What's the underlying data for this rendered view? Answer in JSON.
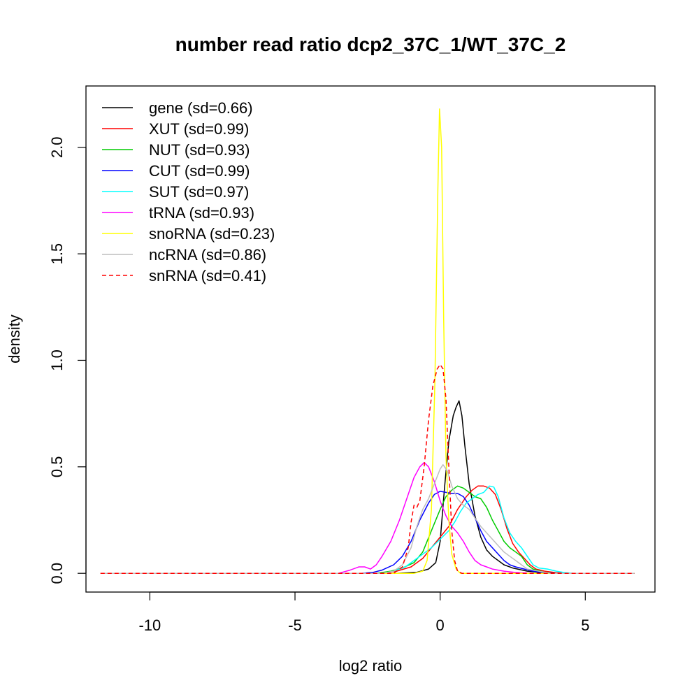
{
  "chart_data": {
    "type": "line",
    "title": "number read ratio dcp2_37C_1/WT_37C_2",
    "xlabel": "log2 ratio",
    "ylabel": "density",
    "xlim": [
      -12.2,
      7.4
    ],
    "ylim": [
      -0.088,
      2.288
    ],
    "x_ticks": [
      -10,
      -5,
      0,
      5
    ],
    "x_tick_labels": [
      "-10",
      "-5",
      "0",
      "5"
    ],
    "y_ticks": [
      0.0,
      0.5,
      1.0,
      1.5,
      2.0
    ],
    "y_tick_labels": [
      "0.0",
      "0.5",
      "1.0",
      "1.5",
      "2.0"
    ],
    "grid": false,
    "legend_position": "top-left",
    "series": [
      {
        "name": "gene (sd=0.66)",
        "color": "#000000",
        "dashed": false,
        "points": [
          [
            -11.7,
            0
          ],
          [
            -1.5,
            0
          ],
          [
            -0.8,
            0.005
          ],
          [
            -0.4,
            0.02
          ],
          [
            -0.15,
            0.05
          ],
          [
            0.0,
            0.15
          ],
          [
            0.15,
            0.4
          ],
          [
            0.3,
            0.62
          ],
          [
            0.45,
            0.74
          ],
          [
            0.55,
            0.78
          ],
          [
            0.65,
            0.81
          ],
          [
            0.75,
            0.74
          ],
          [
            0.85,
            0.6
          ],
          [
            1.0,
            0.42
          ],
          [
            1.2,
            0.27
          ],
          [
            1.4,
            0.17
          ],
          [
            1.6,
            0.11
          ],
          [
            1.8,
            0.08
          ],
          [
            2.0,
            0.06
          ],
          [
            2.2,
            0.04
          ],
          [
            2.5,
            0.025
          ],
          [
            3.0,
            0.01
          ],
          [
            3.5,
            0.003
          ],
          [
            4.2,
            0
          ],
          [
            6.7,
            0
          ]
        ]
      },
      {
        "name": "XUT (sd=0.99)",
        "color": "#ff0000",
        "dashed": false,
        "points": [
          [
            -11.7,
            0
          ],
          [
            -2.0,
            0
          ],
          [
            -1.5,
            0.01
          ],
          [
            -1.0,
            0.03
          ],
          [
            -0.6,
            0.07
          ],
          [
            -0.3,
            0.12
          ],
          [
            0.0,
            0.17
          ],
          [
            0.3,
            0.22
          ],
          [
            0.6,
            0.3
          ],
          [
            0.9,
            0.36
          ],
          [
            1.1,
            0.39
          ],
          [
            1.3,
            0.41
          ],
          [
            1.5,
            0.41
          ],
          [
            1.7,
            0.4
          ],
          [
            1.9,
            0.37
          ],
          [
            2.1,
            0.3
          ],
          [
            2.3,
            0.21
          ],
          [
            2.5,
            0.14
          ],
          [
            2.7,
            0.1
          ],
          [
            2.9,
            0.07
          ],
          [
            3.1,
            0.04
          ],
          [
            3.3,
            0.02
          ],
          [
            3.6,
            0.01
          ],
          [
            4.0,
            0.003
          ],
          [
            4.3,
            0
          ],
          [
            6.7,
            0
          ]
        ]
      },
      {
        "name": "NUT (sd=0.93)",
        "color": "#00cc00",
        "dashed": false,
        "points": [
          [
            -11.7,
            0
          ],
          [
            -2.2,
            0
          ],
          [
            -1.7,
            0.01
          ],
          [
            -1.3,
            0.025
          ],
          [
            -0.9,
            0.05
          ],
          [
            -0.6,
            0.1
          ],
          [
            -0.3,
            0.2
          ],
          [
            0.0,
            0.3
          ],
          [
            0.2,
            0.36
          ],
          [
            0.4,
            0.39
          ],
          [
            0.6,
            0.41
          ],
          [
            0.8,
            0.4
          ],
          [
            1.0,
            0.38
          ],
          [
            1.2,
            0.36
          ],
          [
            1.4,
            0.35
          ],
          [
            1.6,
            0.31
          ],
          [
            1.8,
            0.25
          ],
          [
            2.0,
            0.2
          ],
          [
            2.2,
            0.15
          ],
          [
            2.4,
            0.12
          ],
          [
            2.6,
            0.1
          ],
          [
            2.8,
            0.08
          ],
          [
            3.0,
            0.04
          ],
          [
            3.2,
            0.02
          ],
          [
            3.6,
            0.005
          ],
          [
            4.0,
            0
          ],
          [
            6.7,
            0
          ]
        ]
      },
      {
        "name": "CUT (sd=0.99)",
        "color": "#0000ff",
        "dashed": false,
        "points": [
          [
            -11.7,
            0
          ],
          [
            -2.7,
            0
          ],
          [
            -2.3,
            0.005
          ],
          [
            -2.0,
            0.015
          ],
          [
            -1.6,
            0.04
          ],
          [
            -1.3,
            0.08
          ],
          [
            -1.0,
            0.15
          ],
          [
            -0.7,
            0.25
          ],
          [
            -0.4,
            0.33
          ],
          [
            -0.2,
            0.37
          ],
          [
            0.0,
            0.385
          ],
          [
            0.2,
            0.38
          ],
          [
            0.4,
            0.375
          ],
          [
            0.6,
            0.375
          ],
          [
            0.8,
            0.36
          ],
          [
            1.0,
            0.32
          ],
          [
            1.2,
            0.26
          ],
          [
            1.4,
            0.2
          ],
          [
            1.6,
            0.15
          ],
          [
            1.8,
            0.12
          ],
          [
            2.0,
            0.09
          ],
          [
            2.2,
            0.06
          ],
          [
            2.4,
            0.04
          ],
          [
            2.6,
            0.03
          ],
          [
            2.9,
            0.02
          ],
          [
            3.2,
            0.01
          ],
          [
            3.6,
            0.003
          ],
          [
            4.0,
            0
          ],
          [
            6.7,
            0
          ]
        ]
      },
      {
        "name": "SUT (sd=0.97)",
        "color": "#00ffff",
        "dashed": false,
        "points": [
          [
            -11.7,
            0
          ],
          [
            -2.0,
            0
          ],
          [
            -1.6,
            0.01
          ],
          [
            -1.2,
            0.03
          ],
          [
            -0.9,
            0.06
          ],
          [
            -0.6,
            0.09
          ],
          [
            -0.3,
            0.12
          ],
          [
            0.0,
            0.16
          ],
          [
            0.3,
            0.2
          ],
          [
            0.5,
            0.24
          ],
          [
            0.7,
            0.29
          ],
          [
            0.9,
            0.33
          ],
          [
            1.1,
            0.35
          ],
          [
            1.3,
            0.37
          ],
          [
            1.5,
            0.38
          ],
          [
            1.7,
            0.41
          ],
          [
            1.85,
            0.405
          ],
          [
            2.0,
            0.36
          ],
          [
            2.2,
            0.26
          ],
          [
            2.4,
            0.19
          ],
          [
            2.6,
            0.15
          ],
          [
            2.8,
            0.12
          ],
          [
            3.0,
            0.08
          ],
          [
            3.2,
            0.04
          ],
          [
            3.4,
            0.025
          ],
          [
            3.7,
            0.02
          ],
          [
            4.0,
            0.01
          ],
          [
            4.3,
            0.003
          ],
          [
            4.6,
            0
          ],
          [
            6.7,
            0
          ]
        ]
      },
      {
        "name": "tRNA (sd=0.93)",
        "color": "#ff00ff",
        "dashed": false,
        "points": [
          [
            -11.7,
            0
          ],
          [
            -3.5,
            0
          ],
          [
            -3.1,
            0.015
          ],
          [
            -2.8,
            0.03
          ],
          [
            -2.6,
            0.03
          ],
          [
            -2.4,
            0.02
          ],
          [
            -2.2,
            0.04
          ],
          [
            -2.0,
            0.08
          ],
          [
            -1.7,
            0.15
          ],
          [
            -1.4,
            0.25
          ],
          [
            -1.1,
            0.37
          ],
          [
            -0.9,
            0.45
          ],
          [
            -0.7,
            0.5
          ],
          [
            -0.55,
            0.52
          ],
          [
            -0.4,
            0.5
          ],
          [
            -0.2,
            0.43
          ],
          [
            0.0,
            0.34
          ],
          [
            0.2,
            0.27
          ],
          [
            0.4,
            0.22
          ],
          [
            0.6,
            0.19
          ],
          [
            0.8,
            0.15
          ],
          [
            1.0,
            0.1
          ],
          [
            1.2,
            0.06
          ],
          [
            1.4,
            0.04
          ],
          [
            1.6,
            0.03
          ],
          [
            1.8,
            0.02
          ],
          [
            2.2,
            0.01
          ],
          [
            2.6,
            0.004
          ],
          [
            3.2,
            0
          ],
          [
            6.7,
            0
          ]
        ]
      },
      {
        "name": "snoRNA (sd=0.23)",
        "color": "#ffff00",
        "dashed": false,
        "points": [
          [
            -11.7,
            0
          ],
          [
            -0.9,
            0
          ],
          [
            -0.6,
            0.01
          ],
          [
            -0.45,
            0.06
          ],
          [
            -0.3,
            0.3
          ],
          [
            -0.18,
            0.9
          ],
          [
            -0.08,
            1.8
          ],
          [
            -0.02,
            2.18
          ],
          [
            0.05,
            2.0
          ],
          [
            0.12,
            1.2
          ],
          [
            0.2,
            0.55
          ],
          [
            0.3,
            0.25
          ],
          [
            0.4,
            0.09
          ],
          [
            0.55,
            0.02
          ],
          [
            0.7,
            0
          ],
          [
            6.7,
            0
          ]
        ]
      },
      {
        "name": "ncRNA (sd=0.86)",
        "color": "#bebebe",
        "dashed": false,
        "points": [
          [
            -11.7,
            0
          ],
          [
            -2.0,
            0
          ],
          [
            -1.6,
            0.01
          ],
          [
            -1.3,
            0.04
          ],
          [
            -1.0,
            0.12
          ],
          [
            -0.8,
            0.22
          ],
          [
            -0.6,
            0.3
          ],
          [
            -0.4,
            0.35
          ],
          [
            -0.2,
            0.42
          ],
          [
            0.0,
            0.49
          ],
          [
            0.1,
            0.51
          ],
          [
            0.25,
            0.48
          ],
          [
            0.4,
            0.41
          ],
          [
            0.6,
            0.35
          ],
          [
            0.8,
            0.32
          ],
          [
            1.0,
            0.3
          ],
          [
            1.2,
            0.26
          ],
          [
            1.4,
            0.22
          ],
          [
            1.6,
            0.19
          ],
          [
            1.8,
            0.16
          ],
          [
            2.0,
            0.13
          ],
          [
            2.2,
            0.1
          ],
          [
            2.4,
            0.08
          ],
          [
            2.6,
            0.06
          ],
          [
            2.8,
            0.04
          ],
          [
            3.0,
            0.02
          ],
          [
            3.4,
            0.01
          ],
          [
            3.8,
            0
          ],
          [
            6.7,
            0
          ]
        ]
      },
      {
        "name": "snRNA (sd=0.41)",
        "color": "#ff0000",
        "dashed": true,
        "points": [
          [
            -11.7,
            0
          ],
          [
            -1.6,
            0
          ],
          [
            -1.3,
            0.03
          ],
          [
            -1.1,
            0.12
          ],
          [
            -1.0,
            0.24
          ],
          [
            -0.9,
            0.32
          ],
          [
            -0.8,
            0.31
          ],
          [
            -0.7,
            0.34
          ],
          [
            -0.55,
            0.5
          ],
          [
            -0.4,
            0.72
          ],
          [
            -0.25,
            0.88
          ],
          [
            -0.1,
            0.96
          ],
          [
            0.0,
            0.98
          ],
          [
            0.1,
            0.96
          ],
          [
            0.2,
            0.82
          ],
          [
            0.3,
            0.5
          ],
          [
            0.4,
            0.2
          ],
          [
            0.5,
            0.06
          ],
          [
            0.6,
            0.01
          ],
          [
            0.75,
            0
          ],
          [
            6.7,
            0
          ]
        ]
      }
    ]
  }
}
